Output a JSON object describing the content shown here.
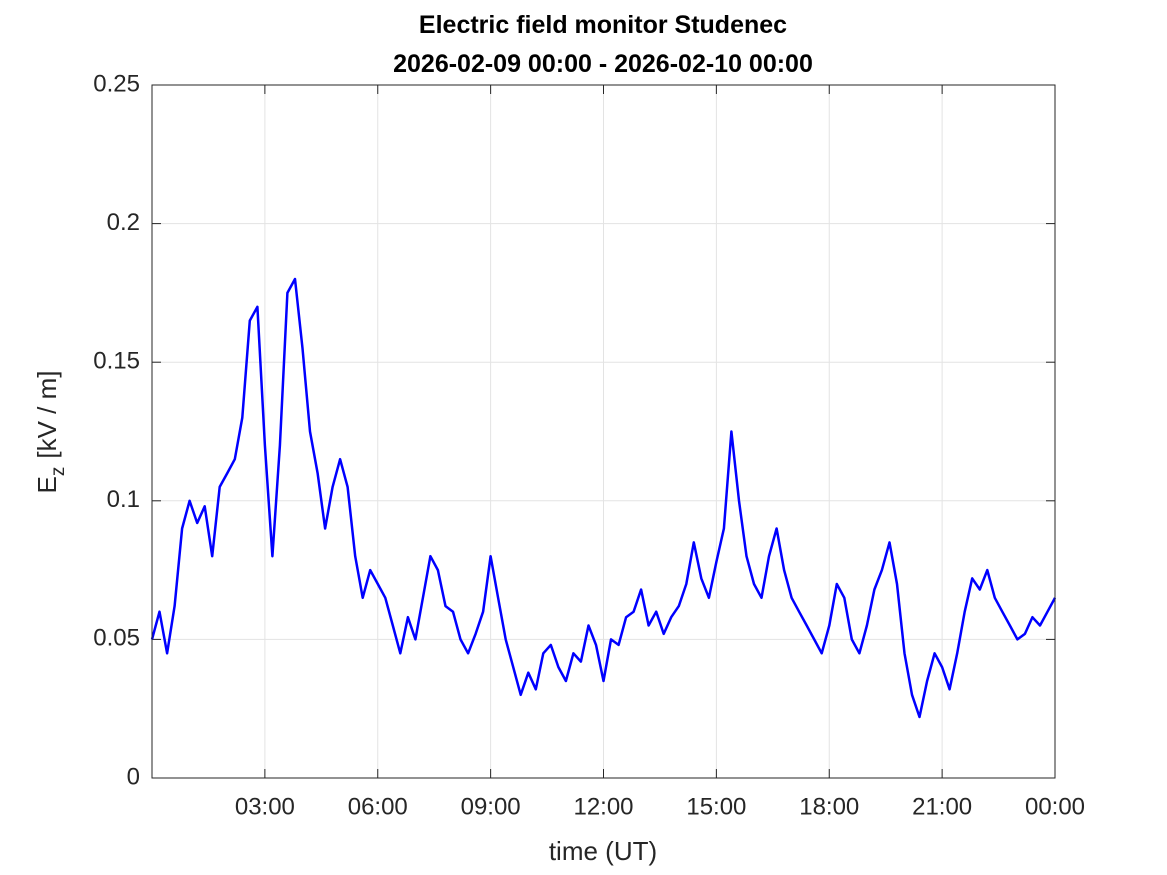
{
  "chart_data": {
    "type": "line",
    "title": "Electric field monitor Studenec",
    "subtitle": "2026-02-09 00:00 - 2026-02-10 00:00",
    "xlabel": "time (UT)",
    "ylabel": {
      "base": "E",
      "sub": "z",
      "unit": "[kV / m]"
    },
    "xlim": [
      0,
      24
    ],
    "xticks": [
      {
        "value": 3,
        "label": "03:00"
      },
      {
        "value": 6,
        "label": "06:00"
      },
      {
        "value": 9,
        "label": "09:00"
      },
      {
        "value": 12,
        "label": "12:00"
      },
      {
        "value": 15,
        "label": "15:00"
      },
      {
        "value": 18,
        "label": "18:00"
      },
      {
        "value": 21,
        "label": "21:00"
      },
      {
        "value": 24,
        "label": "00:00"
      }
    ],
    "ylim": [
      0,
      0.25
    ],
    "yticks": [
      0,
      0.05,
      0.1,
      0.15,
      0.2,
      0.25
    ],
    "grid": true,
    "x": [
      0,
      0.2,
      0.4,
      0.6,
      0.8,
      1,
      1.2,
      1.4,
      1.6,
      1.8,
      2,
      2.2,
      2.4,
      2.6,
      2.8,
      3,
      3.2,
      3.4,
      3.6,
      3.8,
      4,
      4.2,
      4.4,
      4.6,
      4.8,
      5,
      5.2,
      5.4,
      5.6,
      5.8,
      6,
      6.2,
      6.4,
      6.6,
      6.8,
      7,
      7.2,
      7.4,
      7.6,
      7.8,
      8,
      8.2,
      8.4,
      8.6,
      8.8,
      9,
      9.2,
      9.4,
      9.6,
      9.8,
      10,
      10.2,
      10.4,
      10.6,
      10.8,
      11,
      11.2,
      11.4,
      11.6,
      11.8,
      12,
      12.2,
      12.4,
      12.6,
      12.8,
      13,
      13.2,
      13.4,
      13.6,
      13.8,
      14,
      14.2,
      14.4,
      14.6,
      14.8,
      15,
      15.2,
      15.4,
      15.6,
      15.8,
      16,
      16.2,
      16.4,
      16.6,
      16.8,
      17,
      17.2,
      17.4,
      17.6,
      17.8,
      18,
      18.2,
      18.4,
      18.6,
      18.8,
      19,
      19.2,
      19.4,
      19.6,
      19.8,
      20,
      20.2,
      20.4,
      20.6,
      20.8,
      21,
      21.2,
      21.4,
      21.6,
      21.8,
      22,
      22.2,
      22.4,
      22.6,
      22.8,
      23,
      23.2,
      23.4,
      23.6,
      23.8,
      24
    ],
    "series": [
      {
        "name": "Ez",
        "color": "#0000ff",
        "values": [
          0.05,
          0.06,
          0.045,
          0.062,
          0.09,
          0.1,
          0.092,
          0.098,
          0.08,
          0.105,
          0.11,
          0.115,
          0.13,
          0.165,
          0.17,
          0.12,
          0.08,
          0.12,
          0.175,
          0.18,
          0.155,
          0.125,
          0.11,
          0.09,
          0.105,
          0.115,
          0.105,
          0.08,
          0.065,
          0.075,
          0.07,
          0.065,
          0.055,
          0.045,
          0.058,
          0.05,
          0.065,
          0.08,
          0.075,
          0.062,
          0.06,
          0.05,
          0.045,
          0.052,
          0.06,
          0.08,
          0.065,
          0.05,
          0.04,
          0.03,
          0.038,
          0.032,
          0.045,
          0.048,
          0.04,
          0.035,
          0.045,
          0.042,
          0.055,
          0.048,
          0.035,
          0.05,
          0.048,
          0.058,
          0.06,
          0.068,
          0.055,
          0.06,
          0.052,
          0.058,
          0.062,
          0.07,
          0.085,
          0.072,
          0.065,
          0.078,
          0.09,
          0.125,
          0.1,
          0.08,
          0.07,
          0.065,
          0.08,
          0.09,
          0.075,
          0.065,
          0.06,
          0.055,
          0.05,
          0.045,
          0.055,
          0.07,
          0.065,
          0.05,
          0.045,
          0.055,
          0.068,
          0.075,
          0.085,
          0.07,
          0.045,
          0.03,
          0.022,
          0.035,
          0.045,
          0.04,
          0.032,
          0.045,
          0.06,
          0.072,
          0.068,
          0.075,
          0.065,
          0.06,
          0.055,
          0.05,
          0.052,
          0.058,
          0.055,
          0.06,
          0.065
        ]
      }
    ]
  }
}
